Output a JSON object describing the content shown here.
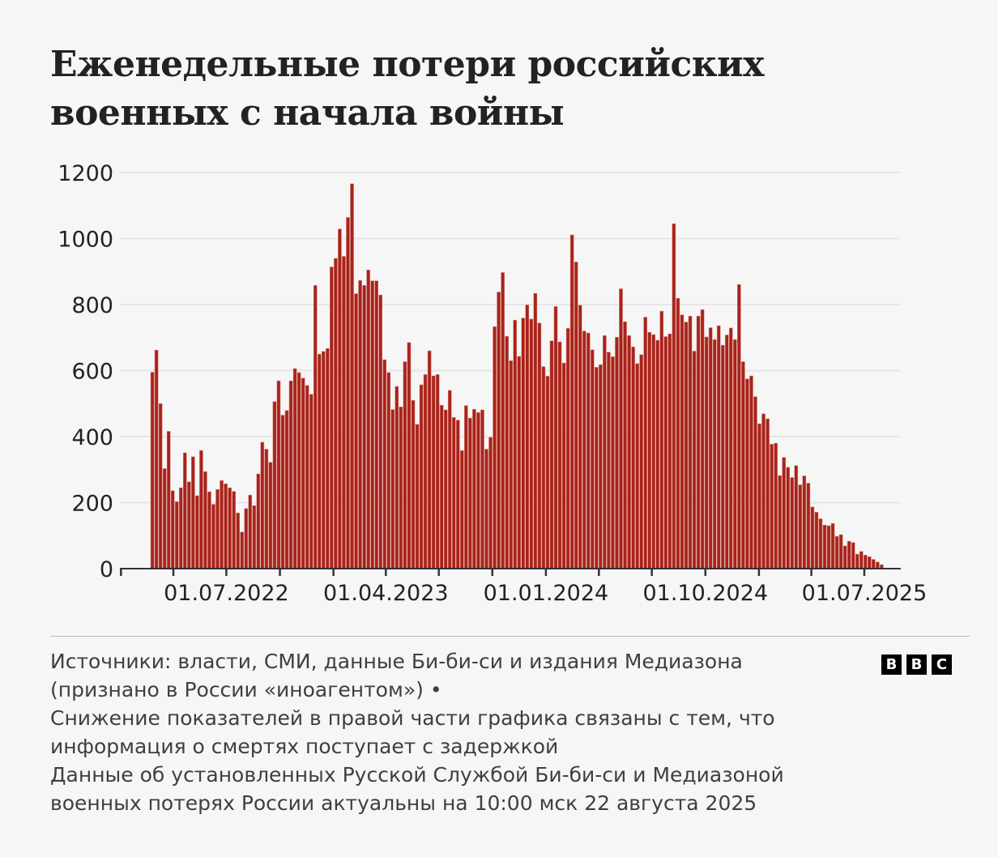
{
  "title_lines": [
    "Еженедельные потери российских",
    "военных с начала войны"
  ],
  "chart_data": {
    "type": "bar",
    "title": "Еженедельные потери российских военных с начала войны",
    "xlabel": "",
    "ylabel": "",
    "ylim": [
      0,
      1200
    ],
    "y_ticks": [
      "0",
      "200",
      "400",
      "600",
      "800",
      "1000",
      "1200"
    ],
    "x_tick_labels": [
      "01.07.2022",
      "01.04.2023",
      "01.01.2024",
      "01.10.2024",
      "01.07.2025"
    ],
    "x_tick_dates": [
      "2022-07-01",
      "2023-04-01",
      "2024-01-01",
      "2024-10-01",
      "2025-07-01"
    ],
    "x_minor_ticks": "quarterly",
    "frequency": "weekly",
    "grid": true,
    "bar_color": "#a8231a",
    "values": [
      595,
      662,
      500,
      303,
      416,
      236,
      203,
      245,
      351,
      263,
      339,
      221,
      358,
      294,
      233,
      195,
      240,
      267,
      257,
      245,
      234,
      169,
      111,
      182,
      223,
      191,
      287,
      383,
      362,
      322,
      506,
      569,
      465,
      479,
      569,
      606,
      594,
      577,
      555,
      528,
      858,
      650,
      658,
      667,
      914,
      940,
      1029,
      946,
      1064,
      1166,
      833,
      873,
      858,
      905,
      872,
      872,
      829,
      633,
      594,
      482,
      552,
      490,
      627,
      685,
      510,
      437,
      557,
      588,
      660,
      584,
      588,
      495,
      481,
      540,
      458,
      450,
      358,
      494,
      456,
      483,
      473,
      481,
      362,
      398,
      733,
      838,
      897,
      704,
      630,
      753,
      643,
      759,
      799,
      756,
      834,
      744,
      612,
      583,
      690,
      794,
      687,
      623,
      728,
      1011,
      929,
      798,
      720,
      714,
      663,
      610,
      618,
      706,
      656,
      642,
      701,
      848,
      748,
      706,
      672,
      621,
      648,
      762,
      716,
      709,
      692,
      780,
      703,
      711,
      1045,
      819,
      769,
      747,
      765,
      659,
      765,
      785,
      702,
      730,
      694,
      736,
      677,
      708,
      729,
      694,
      861,
      627,
      575,
      584,
      521,
      439,
      469,
      454,
      377,
      380,
      282,
      337,
      307,
      276,
      312,
      254,
      281,
      259,
      187,
      171,
      151,
      132,
      130,
      137,
      98,
      103,
      69,
      83,
      79,
      44,
      52,
      41,
      36,
      28,
      20,
      12
    ]
  },
  "footer": {
    "lines": [
      "Источники: власти, СМИ, данные Би-би-си и издания Медиазона",
      "(признано в России «иноагентом») •",
      "Снижение показателей в правой части графика связаны с тем, что",
      "информация о смертях поступает с задержкой",
      "Данные об установленных Русской Службой Би-би-си и Медиазоной",
      "военных потерях России актуальны на 10:00 мск 22 августа 2025"
    ],
    "logo": [
      "B",
      "B",
      "C"
    ]
  }
}
